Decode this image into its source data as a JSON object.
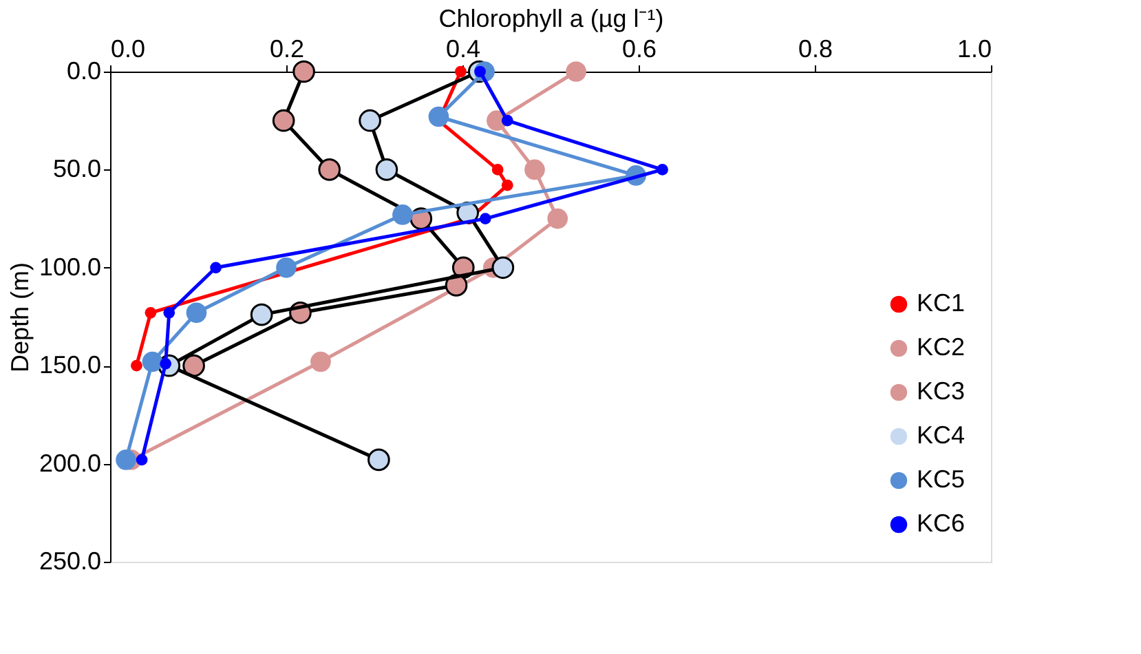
{
  "chart_data": {
    "type": "line",
    "xlabel": "Chlorophyll a (µg l⁻¹)",
    "ylabel": "Depth (m)",
    "xlim": [
      0,
      1
    ],
    "xticks": [
      {
        "value": 0,
        "label": "0.0"
      },
      0.2,
      0.4,
      0.6,
      0.8,
      {
        "value": 1,
        "label": "1.0"
      }
    ],
    "ylim": [
      250,
      0
    ],
    "yticks": [
      {
        "value": 0,
        "label": "0.0"
      },
      {
        "value": 50,
        "label": "50.0"
      },
      {
        "value": 100,
        "label": "100.0"
      },
      {
        "value": 150,
        "label": "150.0"
      },
      {
        "value": 200,
        "label": "200.0"
      },
      {
        "value": 250,
        "label": "250.0"
      }
    ],
    "grid": false,
    "legend": "bottom right",
    "marker": "circle",
    "line_style": "solid",
    "series": [
      {
        "name": "KC1",
        "color": "#ff0000",
        "x": [
          0.398,
          0.373,
          0.44,
          0.451,
          0.408,
          0.046,
          0.03
        ],
        "values": [
          0,
          25,
          50,
          58,
          75,
          123,
          150
        ]
      },
      {
        "name": "KC2",
        "color": "#d99594",
        "x": [
          0.529,
          0.439,
          0.482,
          0.508,
          0.435,
          0.239,
          0.024
        ],
        "values": [
          0,
          25,
          50,
          75,
          100,
          148,
          198
        ]
      },
      {
        "name": "KC3",
        "color": "#d99594",
        "x": [
          0.22,
          0.197,
          0.249,
          0.353,
          0.401,
          0.393,
          0.216,
          0.095
        ],
        "values": [
          0,
          25,
          50,
          75,
          100,
          109,
          123,
          150
        ]
      },
      {
        "name": "KC4",
        "color": "#c6d9f1",
        "x": [
          0.419,
          0.295,
          0.314,
          0.406,
          0.446,
          0.172,
          0.067,
          0.305
        ],
        "values": [
          0,
          25,
          50,
          72,
          100,
          124,
          150,
          198
        ]
      },
      {
        "name": "KC5",
        "color": "#558ed5",
        "x": [
          0.425,
          0.373,
          0.597,
          0.332,
          0.2,
          0.098,
          0.048,
          0.018
        ],
        "values": [
          0,
          23,
          53,
          73,
          100,
          123,
          148,
          198
        ]
      },
      {
        "name": "KC6",
        "color": "#0000ff",
        "x": [
          0.42,
          0.451,
          0.627,
          0.426,
          0.12,
          0.067,
          0.063,
          0.036
        ],
        "values": [
          0,
          25,
          50,
          75,
          100,
          123,
          149,
          198
        ]
      }
    ]
  }
}
